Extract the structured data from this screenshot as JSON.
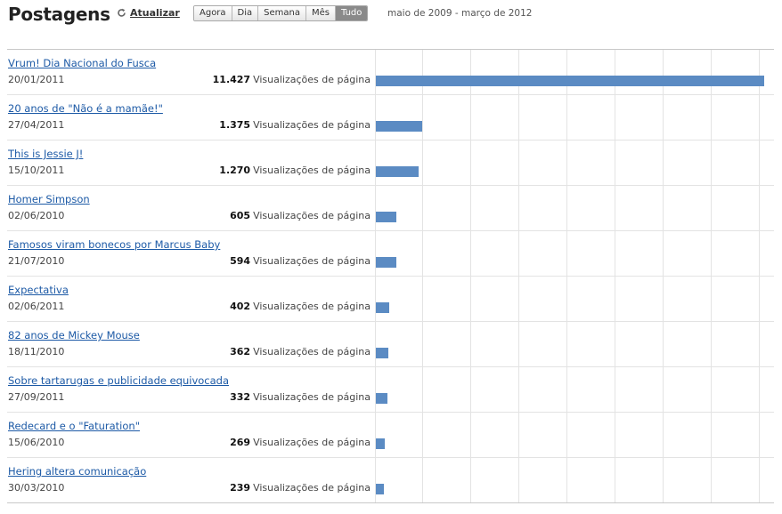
{
  "header": {
    "title": "Postagens",
    "refresh_label": "Atualizar",
    "segments": [
      "Agora",
      "Dia",
      "Semana",
      "Mês",
      "Tudo"
    ],
    "active_segment": "Tudo",
    "date_range": "maio de 2009 - março de 2012"
  },
  "views_label": "Visualizações de página",
  "colors": {
    "bar": "#5b8bc3",
    "link": "#1d5aa6"
  },
  "posts": [
    {
      "title": "Vrum! Dia Nacional do Fusca",
      "date": "20/01/2011",
      "views": "11.427",
      "value": 11427
    },
    {
      "title": "20 anos de \"Não é a mamãe!\"",
      "date": "27/04/2011",
      "views": "1.375",
      "value": 1375
    },
    {
      "title": "This is Jessie J!",
      "date": "15/10/2011",
      "views": "1.270",
      "value": 1270
    },
    {
      "title": "Homer Simpson",
      "date": "02/06/2010",
      "views": "605",
      "value": 605
    },
    {
      "title": "Famosos viram bonecos por Marcus Baby",
      "date": "21/07/2010",
      "views": "594",
      "value": 594
    },
    {
      "title": "Expectativa",
      "date": "02/06/2011",
      "views": "402",
      "value": 402
    },
    {
      "title": "82 anos de Mickey Mouse",
      "date": "18/11/2010",
      "views": "362",
      "value": 362
    },
    {
      "title": "Sobre tartarugas e publicidade equivocada",
      "date": "27/09/2011",
      "views": "332",
      "value": 332
    },
    {
      "title": "Redecard e o \"Faturation\"",
      "date": "15/06/2010",
      "views": "269",
      "value": 269
    },
    {
      "title": "Hering altera comunicação",
      "date": "30/03/2010",
      "views": "239",
      "value": 239
    }
  ]
}
